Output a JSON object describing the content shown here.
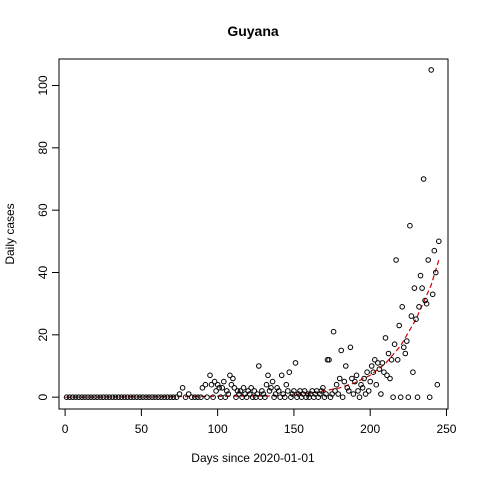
{
  "chart_data": {
    "type": "scatter",
    "title": "Guyana",
    "xlabel": "Days since 2020-01-01",
    "ylabel": "Daily cases",
    "xlim": [
      -4,
      251
    ],
    "ylim": [
      -3.8,
      108.5
    ],
    "xticks": [
      0,
      50,
      100,
      150,
      200,
      250
    ],
    "yticks": [
      0,
      20,
      40,
      60,
      80,
      100
    ],
    "grid": false,
    "legend": "none",
    "trend_color": "#cc0000",
    "point_color": "#000000",
    "points": [
      [
        1,
        0
      ],
      [
        3,
        0
      ],
      [
        5,
        0
      ],
      [
        7,
        0
      ],
      [
        9,
        0
      ],
      [
        11,
        0
      ],
      [
        13,
        0
      ],
      [
        15,
        0
      ],
      [
        17,
        0
      ],
      [
        19,
        0
      ],
      [
        21,
        0
      ],
      [
        23,
        0
      ],
      [
        25,
        0
      ],
      [
        27,
        0
      ],
      [
        29,
        0
      ],
      [
        31,
        0
      ],
      [
        33,
        0
      ],
      [
        35,
        0
      ],
      [
        37,
        0
      ],
      [
        39,
        0
      ],
      [
        41,
        0
      ],
      [
        43,
        0
      ],
      [
        45,
        0
      ],
      [
        47,
        0
      ],
      [
        49,
        0
      ],
      [
        51,
        0
      ],
      [
        53,
        0
      ],
      [
        55,
        0
      ],
      [
        57,
        0
      ],
      [
        59,
        0
      ],
      [
        61,
        0
      ],
      [
        63,
        0
      ],
      [
        65,
        0
      ],
      [
        67,
        0
      ],
      [
        69,
        0
      ],
      [
        71,
        0
      ],
      [
        73,
        0
      ],
      [
        75,
        1
      ],
      [
        77,
        3
      ],
      [
        79,
        0
      ],
      [
        81,
        1
      ],
      [
        83,
        0
      ],
      [
        85,
        0
      ],
      [
        87,
        0
      ],
      [
        89,
        0
      ],
      [
        90,
        3
      ],
      [
        92,
        4
      ],
      [
        93,
        0
      ],
      [
        95,
        7
      ],
      [
        96,
        4
      ],
      [
        97,
        0
      ],
      [
        98,
        5
      ],
      [
        99,
        2
      ],
      [
        100,
        4
      ],
      [
        101,
        3
      ],
      [
        102,
        0
      ],
      [
        103,
        3
      ],
      [
        104,
        5
      ],
      [
        105,
        0
      ],
      [
        106,
        2
      ],
      [
        107,
        1
      ],
      [
        108,
        7
      ],
      [
        109,
        4
      ],
      [
        110,
        6
      ],
      [
        111,
        3
      ],
      [
        112,
        0
      ],
      [
        113,
        2
      ],
      [
        114,
        1
      ],
      [
        115,
        2
      ],
      [
        116,
        0
      ],
      [
        117,
        3
      ],
      [
        118,
        1
      ],
      [
        119,
        0
      ],
      [
        120,
        2
      ],
      [
        121,
        1
      ],
      [
        122,
        3
      ],
      [
        123,
        0
      ],
      [
        124,
        2
      ],
      [
        125,
        0
      ],
      [
        126,
        1
      ],
      [
        127,
        10
      ],
      [
        128,
        0
      ],
      [
        129,
        2
      ],
      [
        130,
        1
      ],
      [
        131,
        0
      ],
      [
        132,
        4
      ],
      [
        133,
        7
      ],
      [
        134,
        2
      ],
      [
        135,
        3
      ],
      [
        136,
        5
      ],
      [
        137,
        0
      ],
      [
        138,
        1
      ],
      [
        139,
        3
      ],
      [
        140,
        2
      ],
      [
        141,
        0
      ],
      [
        142,
        7
      ],
      [
        143,
        1
      ],
      [
        144,
        0
      ],
      [
        145,
        4
      ],
      [
        146,
        2
      ],
      [
        147,
        8
      ],
      [
        148,
        0
      ],
      [
        149,
        1
      ],
      [
        150,
        2
      ],
      [
        151,
        11
      ],
      [
        152,
        0
      ],
      [
        153,
        1
      ],
      [
        154,
        2
      ],
      [
        155,
        0
      ],
      [
        156,
        1
      ],
      [
        157,
        2
      ],
      [
        158,
        0
      ],
      [
        159,
        1
      ],
      [
        160,
        0
      ],
      [
        161,
        1
      ],
      [
        162,
        2
      ],
      [
        163,
        0
      ],
      [
        164,
        1
      ],
      [
        165,
        2
      ],
      [
        166,
        0
      ],
      [
        167,
        1
      ],
      [
        168,
        2
      ],
      [
        169,
        3
      ],
      [
        170,
        0
      ],
      [
        171,
        1
      ],
      [
        172,
        12
      ],
      [
        173,
        12
      ],
      [
        174,
        0
      ],
      [
        175,
        1
      ],
      [
        176,
        21
      ],
      [
        177,
        2
      ],
      [
        178,
        4
      ],
      [
        179,
        1
      ],
      [
        180,
        6
      ],
      [
        181,
        15
      ],
      [
        182,
        0
      ],
      [
        183,
        5
      ],
      [
        184,
        10
      ],
      [
        185,
        3
      ],
      [
        186,
        2
      ],
      [
        187,
        16
      ],
      [
        188,
        6
      ],
      [
        189,
        1
      ],
      [
        190,
        5
      ],
      [
        191,
        7
      ],
      [
        192,
        2
      ],
      [
        193,
        0
      ],
      [
        194,
        4
      ],
      [
        195,
        3
      ],
      [
        196,
        6
      ],
      [
        197,
        1
      ],
      [
        198,
        8
      ],
      [
        199,
        2
      ],
      [
        200,
        5
      ],
      [
        201,
        10
      ],
      [
        202,
        8
      ],
      [
        203,
        12
      ],
      [
        204,
        4
      ],
      [
        205,
        11
      ],
      [
        206,
        9
      ],
      [
        207,
        1
      ],
      [
        208,
        11
      ],
      [
        209,
        8
      ],
      [
        210,
        19
      ],
      [
        211,
        7
      ],
      [
        212,
        14
      ],
      [
        213,
        6
      ],
      [
        214,
        12
      ],
      [
        215,
        0
      ],
      [
        216,
        17
      ],
      [
        217,
        44
      ],
      [
        218,
        12
      ],
      [
        219,
        23
      ],
      [
        220,
        0
      ],
      [
        221,
        29
      ],
      [
        222,
        16
      ],
      [
        223,
        14
      ],
      [
        224,
        18
      ],
      [
        225,
        0
      ],
      [
        226,
        55
      ],
      [
        227,
        26
      ],
      [
        228,
        8
      ],
      [
        229,
        35
      ],
      [
        230,
        25
      ],
      [
        231,
        0
      ],
      [
        232,
        29
      ],
      [
        233,
        39
      ],
      [
        234,
        35
      ],
      [
        235,
        70
      ],
      [
        236,
        31
      ],
      [
        237,
        30
      ],
      [
        238,
        44
      ],
      [
        239,
        0
      ],
      [
        240,
        105
      ],
      [
        241,
        33
      ],
      [
        242,
        47
      ],
      [
        243,
        40
      ],
      [
        244,
        4
      ],
      [
        245,
        50
      ]
    ],
    "trend": {
      "x": [
        0,
        140,
        150,
        160,
        170,
        180,
        190,
        200,
        210,
        220,
        230,
        240,
        245
      ],
      "y": [
        0,
        0.4,
        0.8,
        1.3,
        2.0,
        3.0,
        4.6,
        7.0,
        10.8,
        16.5,
        25.0,
        36.0,
        44.0
      ]
    }
  }
}
